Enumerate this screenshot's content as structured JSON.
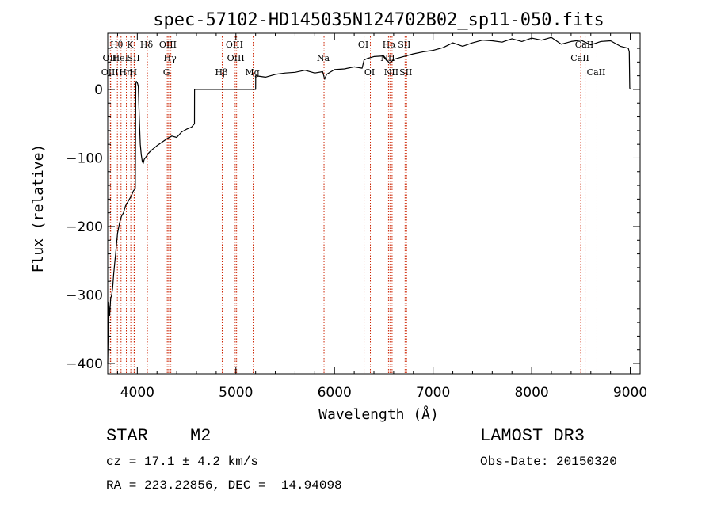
{
  "chart_data": {
    "type": "line",
    "title": "spec-57102-HD145035N124702B02_sp11-050.fits",
    "xlabel": "Wavelength (Å)",
    "ylabel": "Flux (relative)",
    "xlim": [
      3700,
      9100
    ],
    "ylim": [
      -415,
      82
    ],
    "xticks": [
      4000,
      5000,
      6000,
      7000,
      8000,
      9000
    ],
    "yticks": [
      0,
      -100,
      -200,
      -300,
      -400
    ],
    "series": [
      {
        "name": "flux",
        "x": [
          3700,
          3705,
          3710,
          3720,
          3730,
          3740,
          3750,
          3760,
          3770,
          3780,
          3790,
          3800,
          3820,
          3840,
          3860,
          3880,
          3900,
          3920,
          3940,
          3960,
          3980,
          3985,
          3990,
          4000,
          4010,
          4020,
          4030,
          4040,
          4050,
          4060,
          4070,
          4080,
          4100,
          4120,
          4150,
          4200,
          4250,
          4300,
          4350,
          4400,
          4450,
          4500,
          4550,
          4580,
          4581,
          4620,
          4700,
          4800,
          4900,
          5000,
          5100,
          5200,
          5201,
          5300,
          5400,
          5500,
          5600,
          5700,
          5800,
          5880,
          5900,
          5920,
          6000,
          6100,
          6200,
          6280,
          6300,
          6330,
          6400,
          6500,
          6560,
          6600,
          6700,
          6800,
          6900,
          7000,
          7100,
          7200,
          7300,
          7400,
          7500,
          7600,
          7700,
          7800,
          7900,
          8000,
          8100,
          8200,
          8300,
          8400,
          8500,
          8600,
          8700,
          8800,
          8900,
          8980,
          8990,
          8995,
          9000
        ],
        "y": [
          -400,
          -350,
          -310,
          -330,
          -305,
          -300,
          -290,
          -270,
          -255,
          -240,
          -225,
          -210,
          -195,
          -185,
          -180,
          -170,
          -165,
          -160,
          -155,
          -148,
          -145,
          8,
          12,
          10,
          5,
          -40,
          -80,
          -95,
          -105,
          -108,
          -102,
          -100,
          -96,
          -92,
          -88,
          -82,
          -77,
          -72,
          -68,
          -70,
          -62,
          -58,
          -55,
          -50,
          0,
          0,
          0,
          0,
          0,
          0,
          0,
          0,
          20,
          18,
          22,
          24,
          25,
          28,
          24,
          26,
          15,
          22,
          29,
          30,
          33,
          31,
          43,
          45,
          48,
          49,
          38,
          44,
          48,
          52,
          55,
          57,
          61,
          68,
          63,
          68,
          72,
          71,
          69,
          74,
          70,
          75,
          72,
          76,
          66,
          70,
          72,
          65,
          70,
          71,
          63,
          60,
          55,
          2,
          0
        ],
        "color": "#000000"
      }
    ],
    "lines": [
      {
        "label": "OII",
        "x": 3727,
        "tier": 2
      },
      {
        "label": "OIII",
        "x": 3730,
        "tier": 3
      },
      {
        "label": "Hθ",
        "x": 3798,
        "tier": 1
      },
      {
        "label": "HeI",
        "x": 3835,
        "tier": 2
      },
      {
        "label": "Hη",
        "x": 3889,
        "tier": 3
      },
      {
        "label": "K",
        "x": 3934,
        "tier": 1
      },
      {
        "label": "SII",
        "x": 3970,
        "tier": 2
      },
      {
        "label": "H",
        "x": 3968,
        "tier": 3
      },
      {
        "label": "Hδ",
        "x": 4102,
        "tier": 1
      },
      {
        "label": "OIII",
        "x": 4318,
        "tier": 1
      },
      {
        "label": "Hγ",
        "x": 4340,
        "tier": 2
      },
      {
        "label": "G",
        "x": 4304,
        "tier": 3
      },
      {
        "label": "Hβ",
        "x": 4861,
        "tier": 3
      },
      {
        "label": "OIII",
        "x": 4993,
        "tier": 1
      },
      {
        "label": "OIII",
        "x": 5007,
        "tier": 2
      },
      {
        "label": "Mg",
        "x": 5175,
        "tier": 3
      },
      {
        "label": "Na",
        "x": 5894,
        "tier": 2
      },
      {
        "label": "OI",
        "x": 6300,
        "tier": 1
      },
      {
        "label": "OI",
        "x": 6364,
        "tier": 3
      },
      {
        "label": "Hα",
        "x": 6563,
        "tier": 1
      },
      {
        "label": "NII",
        "x": 6548,
        "tier": 2
      },
      {
        "label": "NII",
        "x": 6584,
        "tier": 3
      },
      {
        "label": "SII",
        "x": 6716,
        "tier": 1
      },
      {
        "label": "SII",
        "x": 6731,
        "tier": 3
      },
      {
        "label": "CaII",
        "x": 8498,
        "tier": 2
      },
      {
        "label": "CaII",
        "x": 8542,
        "tier": 1
      },
      {
        "label": "CaII",
        "x": 8662,
        "tier": 3
      }
    ]
  },
  "info": {
    "object_class": "STAR",
    "subclass": "M2",
    "survey": "LAMOST DR3",
    "cz": "cz = 17.1 ± 4.2 km/s",
    "obs_date": "Obs-Date: 20150320",
    "radec": "RA = 223.22856, DEC =  14.94098"
  }
}
